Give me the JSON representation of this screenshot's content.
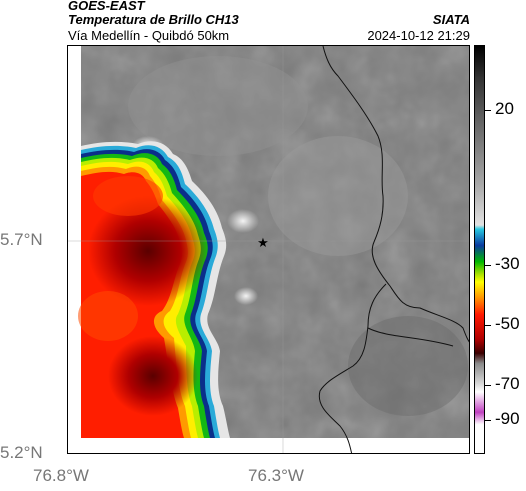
{
  "header": {
    "satellite": "GOES-EAST",
    "product": "Temperatura de Brillo CH13",
    "brand": "SIATA",
    "region": "Vía Medellín - Quibdó 50km",
    "datetime": "2024-10-12 21:29"
  },
  "axes": {
    "latitude_ticks": [
      "5.7°N",
      "5.2°N"
    ],
    "longitude_ticks": [
      "76.8°W",
      "76.3°W"
    ]
  },
  "colorbar": {
    "tick_labels": [
      "20",
      "-30",
      "-50",
      "-70",
      "-90"
    ]
  },
  "map": {
    "marker": "star-icon"
  }
}
